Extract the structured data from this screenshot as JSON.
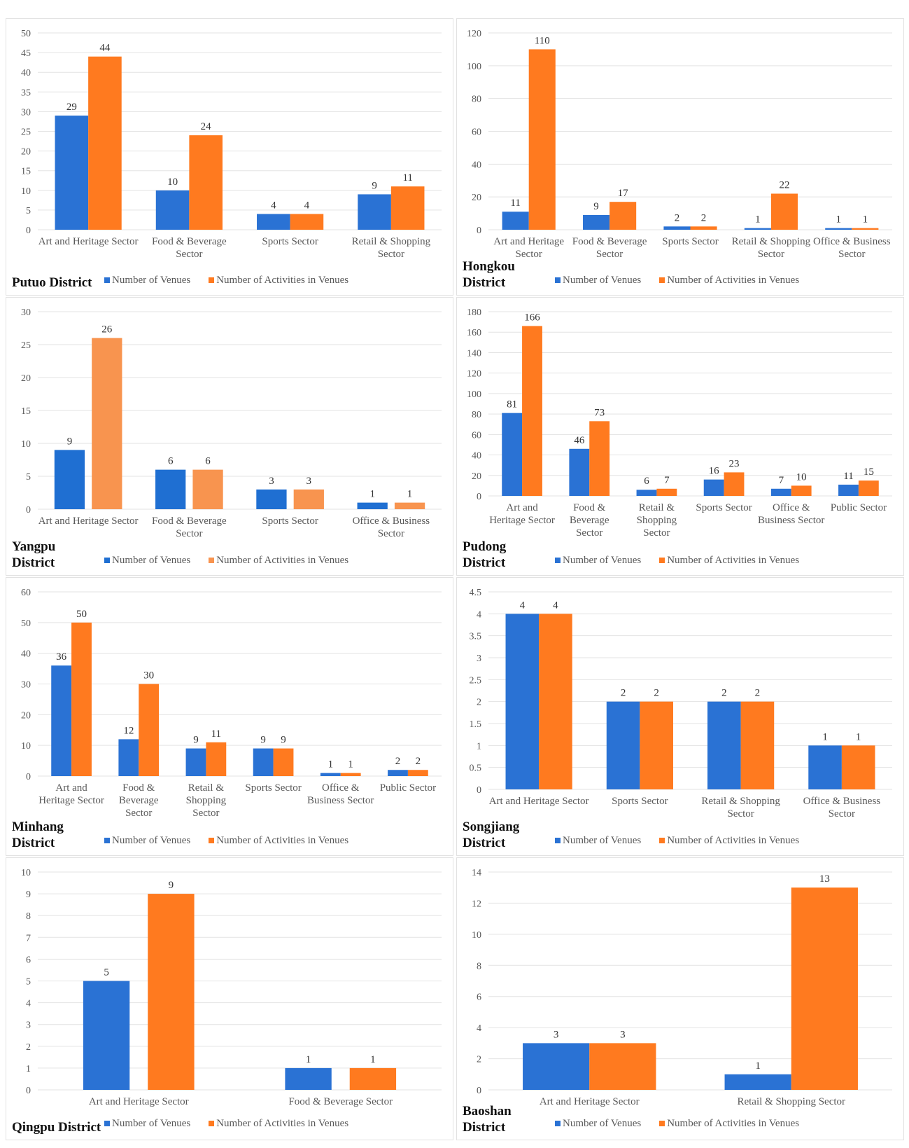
{
  "chart_data": [
    {
      "type": "bar",
      "title": "Putuo District",
      "categories": [
        "Art and Heritage Sector",
        "Food & Beverage Sector",
        "Sports Sector",
        "Retail & Shopping Sector"
      ],
      "series": [
        {
          "name": "Number of Venues",
          "color": "#2a72d4",
          "values": [
            29,
            10,
            4,
            9
          ]
        },
        {
          "name": "Number of Activities in Venues",
          "color": "#ff7a1f",
          "values": [
            44,
            24,
            4,
            11
          ]
        }
      ],
      "ylim": [
        0,
        50
      ],
      "yticks": [
        0,
        5,
        10,
        15,
        20,
        25,
        30,
        35,
        40,
        45,
        50
      ],
      "grid": true
    },
    {
      "type": "bar",
      "title": "Hongkou District",
      "categories": [
        "Art and Heritage Sector",
        "Food & Beverage Sector",
        "Sports Sector",
        "Retail & Shopping Sector",
        "Office & Business Sector"
      ],
      "series": [
        {
          "name": "Number of Venues",
          "color": "#2a72d4",
          "values": [
            11,
            9,
            2,
            1,
            1
          ]
        },
        {
          "name": "Number of Activities in Venues",
          "color": "#ff7a1f",
          "values": [
            110,
            17,
            2,
            22,
            1
          ]
        }
      ],
      "ylim": [
        0,
        120
      ],
      "yticks": [
        0,
        20,
        40,
        60,
        80,
        100,
        120
      ],
      "grid": true
    },
    {
      "type": "bar",
      "title": "Yangpu District",
      "categories": [
        "Art and Heritage Sector",
        "Food & Beverage Sector",
        "Sports Sector",
        "Office & Business Sector"
      ],
      "series": [
        {
          "name": "Number of Venues",
          "color": "#1f6fd2",
          "values": [
            9,
            6,
            3,
            1
          ]
        },
        {
          "name": "Number of Activities in Venues",
          "color": "#f8944f",
          "values": [
            26,
            6,
            3,
            1
          ]
        }
      ],
      "ylim": [
        0,
        30
      ],
      "yticks": [
        0,
        5,
        10,
        15,
        20,
        25,
        30
      ],
      "grid": true
    },
    {
      "type": "bar",
      "title": "Pudong District",
      "categories": [
        "Art and Heritage Sector",
        "Food & Beverage Sector",
        "Retail & Shopping Sector",
        "Sports Sector",
        "Office & Business Sector",
        "Public Sector"
      ],
      "series": [
        {
          "name": "Number of Venues",
          "color": "#2a72d4",
          "values": [
            81,
            46,
            6,
            16,
            7,
            11
          ]
        },
        {
          "name": "Number of Activities in Venues",
          "color": "#ff7a1f",
          "values": [
            166,
            73,
            7,
            23,
            10,
            15
          ]
        }
      ],
      "ylim": [
        0,
        180
      ],
      "yticks": [
        0,
        20,
        40,
        60,
        80,
        100,
        120,
        140,
        160,
        180
      ],
      "grid": true
    },
    {
      "type": "bar",
      "title": "Minhang District",
      "categories": [
        "Art and Heritage Sector",
        "Food & Beverage Sector",
        "Retail & Shopping Sector",
        "Sports Sector",
        "Office & Business Sector",
        "Public Sector"
      ],
      "series": [
        {
          "name": "Number of Venues",
          "color": "#2a72d4",
          "values": [
            36,
            12,
            9,
            9,
            1,
            2
          ]
        },
        {
          "name": "Number of Activities in Venues",
          "color": "#ff7a1f",
          "values": [
            50,
            30,
            11,
            9,
            1,
            2
          ]
        }
      ],
      "ylim": [
        0,
        60
      ],
      "yticks": [
        0,
        10,
        20,
        30,
        40,
        50,
        60
      ],
      "grid": true
    },
    {
      "type": "bar",
      "title": "Songjiang District",
      "categories": [
        "Art and Heritage Sector",
        "Sports Sector",
        "Retail & Shopping Sector",
        "Office & Business Sector"
      ],
      "series": [
        {
          "name": "Number of Venues",
          "color": "#2a72d4",
          "values": [
            4,
            2,
            2,
            1
          ]
        },
        {
          "name": "Number of Activities in Venues",
          "color": "#ff7a1f",
          "values": [
            4,
            2,
            2,
            1
          ]
        }
      ],
      "ylim": [
        0,
        4.5
      ],
      "yticks": [
        0,
        0.5,
        1,
        1.5,
        2,
        2.5,
        3,
        3.5,
        4,
        4.5
      ],
      "grid": true
    },
    {
      "type": "bar",
      "title": "Qingpu District",
      "categories": [
        "Art and Heritage Sector",
        "Food & Beverage Sector"
      ],
      "series": [
        {
          "name": "Number of Venues",
          "color": "#2a72d4",
          "values": [
            5,
            1
          ]
        },
        {
          "name": "Number of Activities in Venues",
          "color": "#ff7a1f",
          "values": [
            9,
            1
          ]
        }
      ],
      "ylim": [
        0,
        10
      ],
      "yticks": [
        0,
        1,
        2,
        3,
        4,
        5,
        6,
        7,
        8,
        9,
        10
      ],
      "grid": true
    },
    {
      "type": "bar",
      "title": "Baoshan District",
      "categories": [
        "Art and Heritage Sector",
        "Retail & Shopping Sector"
      ],
      "series": [
        {
          "name": "Number of Venues",
          "color": "#2a72d4",
          "values": [
            3,
            1
          ]
        },
        {
          "name": "Number of Activities in Venues",
          "color": "#ff7a1f",
          "values": [
            3,
            13
          ]
        }
      ],
      "ylim": [
        0,
        14
      ],
      "yticks": [
        0,
        2,
        4,
        6,
        8,
        10,
        12,
        14
      ],
      "grid": true
    }
  ]
}
